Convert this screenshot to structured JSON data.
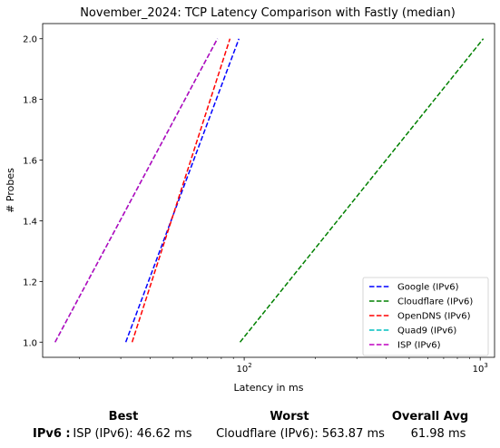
{
  "chart_data": {
    "type": "line",
    "title": "November_2024: TCP Latency Comparison with Fastly (median)",
    "xlabel": "Latency in ms",
    "ylabel": "# Probes",
    "xscale": "log",
    "xlim": [
      14,
      1150
    ],
    "ylim": [
      0.95,
      2.05
    ],
    "x_ticks": [
      {
        "value": 100,
        "base": "10",
        "exp": "2"
      },
      {
        "value": 1000,
        "base": "10",
        "exp": "3"
      }
    ],
    "y_ticks": [
      {
        "value": 1.0,
        "label": "1.0"
      },
      {
        "value": 1.2,
        "label": "1.2"
      },
      {
        "value": 1.4,
        "label": "1.4"
      },
      {
        "value": 1.6,
        "label": "1.6"
      },
      {
        "value": 1.8,
        "label": "1.8"
      },
      {
        "value": 2.0,
        "label": "2.0"
      }
    ],
    "legend_position": "bottom-right",
    "grid": false,
    "series": [
      {
        "name": "Google (IPv6)",
        "color": "#0000ff",
        "x": [
          31.5,
          95
        ],
        "y": [
          1,
          2
        ]
      },
      {
        "name": "Cloudflare (IPv6)",
        "color": "#008000",
        "x": [
          96,
          1030
        ],
        "y": [
          1,
          2
        ]
      },
      {
        "name": "OpenDNS (IPv6)",
        "color": "#ff0000",
        "x": [
          33.5,
          87
        ],
        "y": [
          1,
          2
        ]
      },
      {
        "name": "Quad9 (IPv6)",
        "color": "#00bfbf",
        "x": [
          15.8,
          77
        ],
        "y": [
          1,
          2
        ]
      },
      {
        "name": "ISP (IPv6)",
        "color": "#bf00bf",
        "x": [
          15.8,
          77
        ],
        "y": [
          1,
          2
        ]
      }
    ]
  },
  "summary": {
    "headers": {
      "best": "Best",
      "worst": "Worst",
      "avg": "Overall Avg"
    },
    "row_label": "IPv6 :",
    "best": "ISP (IPv6): 46.62 ms",
    "worst": "Cloudflare (IPv6): 563.87 ms",
    "avg": "61.98 ms"
  }
}
